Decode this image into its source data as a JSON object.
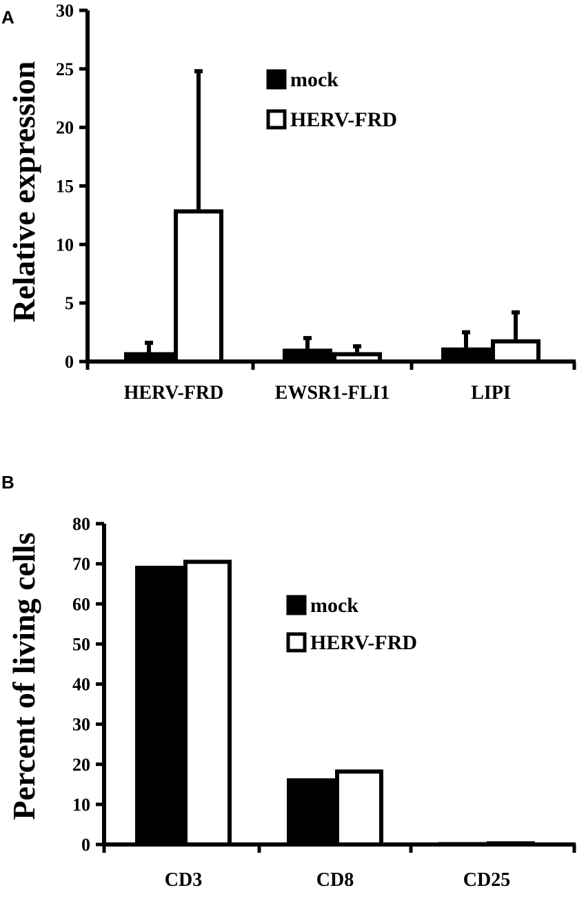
{
  "chart_data": [
    {
      "panel": "A",
      "type": "bar",
      "ylabel": "Relative expression",
      "xlabel": "",
      "ylim": [
        0,
        30
      ],
      "yticks": [
        0,
        5,
        10,
        15,
        20,
        25,
        30
      ],
      "categories": [
        "HERV-FRD",
        "EWSR1-FLI1",
        "LIPI"
      ],
      "series": [
        {
          "name": "mock",
          "fill": "#000000",
          "values": [
            0.8,
            1.1,
            1.2
          ],
          "errors": [
            0.8,
            0.9,
            1.3
          ]
        },
        {
          "name": "HERV-FRD",
          "fill": "#ffffff",
          "values": [
            13.0,
            0.8,
            1.9
          ],
          "errors": [
            11.8,
            0.5,
            2.3
          ]
        }
      ],
      "legend": {
        "position": "top-right"
      },
      "grid": false
    },
    {
      "panel": "B",
      "type": "bar",
      "ylabel": "Percent of living cells",
      "xlabel": "",
      "ylim": [
        0,
        80
      ],
      "yticks": [
        0,
        10,
        20,
        30,
        40,
        50,
        60,
        70,
        80
      ],
      "categories": [
        "CD3",
        "CD8",
        "CD25"
      ],
      "series": [
        {
          "name": "mock",
          "fill": "#000000",
          "values": [
            69.5,
            16.5,
            0.6
          ]
        },
        {
          "name": "HERV-FRD",
          "fill": "#ffffff",
          "values": [
            71.0,
            18.7,
            0.8
          ]
        }
      ],
      "legend": {
        "position": "middle-right"
      },
      "grid": false
    }
  ]
}
